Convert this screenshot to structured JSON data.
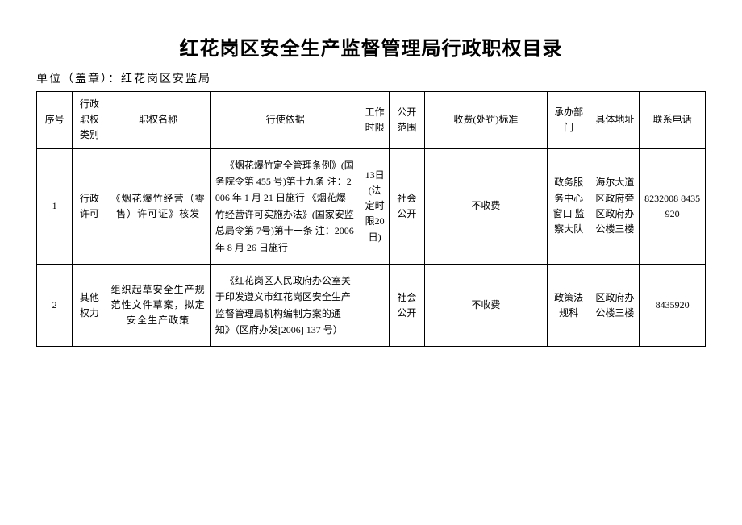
{
  "title": "红花岗区安全生产监督管理局行政职权目录",
  "subtitle": "单位（盖章）：红花岗区安监局",
  "headers": {
    "seq": "序号",
    "category": "行政职权类别",
    "name": "职权名称",
    "basis": "行使依据",
    "time": "工作时限",
    "scope": "公开范围",
    "fee": "收费(处罚)标准",
    "dept": "承办部门",
    "addr": "具体地址",
    "phone": "联系电话"
  },
  "rows": [
    {
      "seq": "1",
      "category": "行政许可",
      "name": "《烟花爆竹经营（零售）许可证》核发",
      "basis": "《烟花爆竹定全管理条例》(国务院令第 455 号)第十九条  注：2006 年 1 月 21 日施行  《烟花爆竹经营许可实施办法》(国家安监总局令第 7号)第十一条  注：2006年 8 月 26 日施行",
      "time": "13日(法定时限20日)",
      "scope": "社会公开",
      "fee": "不收费",
      "dept": "政务服务中心窗口  监察大队",
      "addr": "海尔大道区政府旁区政府办公楼三楼",
      "phone": "8232008 8435920"
    },
    {
      "seq": "2",
      "category": "其他权力",
      "name": "组织起草安全生产规范性文件草案，拟定安全生产政策",
      "basis": "《红花岗区人民政府办公室关于印发遵义市红花岗区安全生产监督管理局机构编制方案的通知》（区府办发[2006] 137 号）",
      "time": "",
      "scope": "社会公开",
      "fee": "不收费",
      "dept": "政策法规科",
      "addr": "区政府办公楼三楼",
      "phone": "8435920"
    }
  ]
}
